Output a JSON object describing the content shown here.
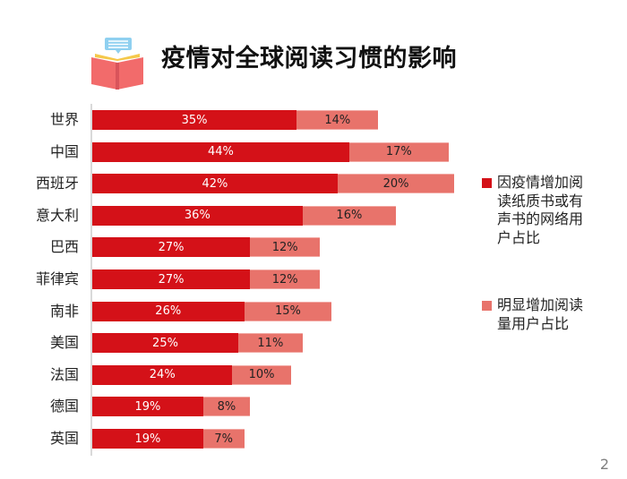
{
  "title": "疫情对全球阅读习惯的影响",
  "title_icon": "open-book-icon",
  "page_number": "2",
  "colors": {
    "series1": "#d41118",
    "series2": "#e8736b",
    "axis": "#d9d9d9"
  },
  "legend": {
    "items": [
      {
        "label": "因疫情增加阅读纸质书或有声书的网络用户占比",
        "color": "#d41118"
      },
      {
        "label": "明显增加阅读量用户占比",
        "color": "#e8736b"
      }
    ]
  },
  "chart_data": {
    "type": "bar",
    "orientation": "horizontal",
    "stacked": true,
    "title": "疫情对全球阅读习惯的影响",
    "xlabel": "",
    "ylabel": "",
    "grid": false,
    "legend_position": "right",
    "categories": [
      "世界",
      "中国",
      "西班牙",
      "意大利",
      "巴西",
      "菲律宾",
      "南非",
      "美国",
      "法国",
      "德国",
      "英国"
    ],
    "series": [
      {
        "name": "因疫情增加阅读纸质书或有声书的网络用户占比",
        "values": [
          35,
          44,
          42,
          36,
          27,
          27,
          26,
          25,
          24,
          19,
          19
        ],
        "labels": [
          "35%",
          "44%",
          "42%",
          "36%",
          "27%",
          "27%",
          "26%",
          "25%",
          "24%",
          "19%",
          "19%"
        ]
      },
      {
        "name": "明显增加阅读量用户占比",
        "values": [
          14,
          17,
          20,
          16,
          12,
          12,
          15,
          11,
          10,
          8,
          7
        ],
        "labels": [
          "14%",
          "17%",
          "20%",
          "16%",
          "12%",
          "12%",
          "15%",
          "11%",
          "10%",
          "8%",
          "7%"
        ]
      }
    ]
  }
}
